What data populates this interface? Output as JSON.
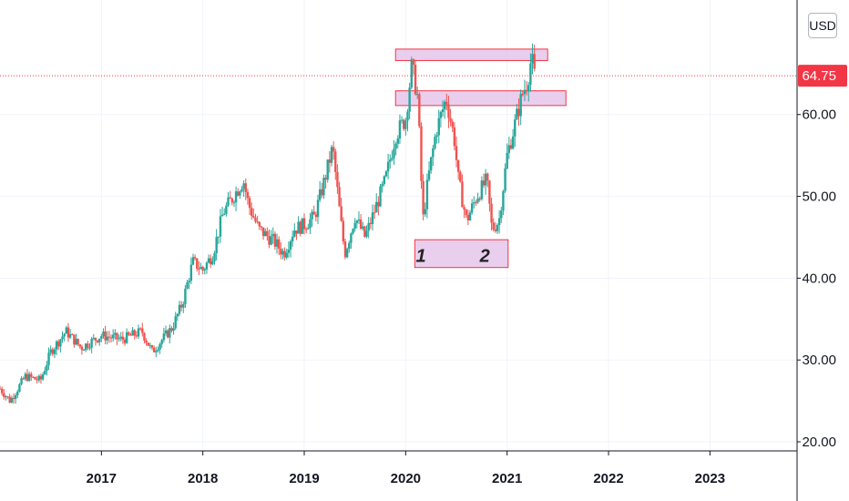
{
  "currency": "USD",
  "last_price": {
    "value": 64.75,
    "label": "64.75",
    "color": "#f23645"
  },
  "colors": {
    "up": "#26a69a",
    "down": "#ef5350",
    "grid": "#f0f3fa",
    "zone_fill": "#e1bee7",
    "zone_stroke": "#f23645",
    "axis_line": "#131722"
  },
  "chart_data": {
    "type": "candlestick",
    "title": "",
    "xlabel": "",
    "ylabel": "",
    "ylim": [
      19,
      74
    ],
    "xlim": [
      2016.0,
      2023.85
    ],
    "y_ticks": [
      20,
      30,
      40,
      50,
      60
    ],
    "y_tick_labels": [
      "20.00",
      "30.00",
      "40.00",
      "50.00",
      "60.00"
    ],
    "x_ticks": [
      2017,
      2018,
      2019,
      2020,
      2021,
      2022,
      2023
    ],
    "x_tick_labels": [
      "2017",
      "2018",
      "2019",
      "2020",
      "2021",
      "2022",
      "2023"
    ],
    "grid": true,
    "anchors": [
      [
        2016.0,
        26.5
      ],
      [
        2016.1,
        25.0
      ],
      [
        2016.25,
        28.0
      ],
      [
        2016.4,
        27.5
      ],
      [
        2016.5,
        31.0
      ],
      [
        2016.65,
        33.5
      ],
      [
        2016.8,
        31.5
      ],
      [
        2017.0,
        33.0
      ],
      [
        2017.2,
        32.5
      ],
      [
        2017.4,
        33.5
      ],
      [
        2017.5,
        31.0
      ],
      [
        2017.6,
        32.5
      ],
      [
        2017.7,
        34.0
      ],
      [
        2017.8,
        37.0
      ],
      [
        2017.9,
        42.0
      ],
      [
        2018.0,
        41.0
      ],
      [
        2018.1,
        43.0
      ],
      [
        2018.2,
        48.0
      ],
      [
        2018.3,
        50.0
      ],
      [
        2018.4,
        52.0
      ],
      [
        2018.45,
        49.0
      ],
      [
        2018.55,
        46.0
      ],
      [
        2018.7,
        44.5
      ],
      [
        2018.8,
        43.0
      ],
      [
        2018.9,
        46.0
      ],
      [
        2019.0,
        46.5
      ],
      [
        2019.1,
        47.5
      ],
      [
        2019.2,
        52.0
      ],
      [
        2019.28,
        56.0
      ],
      [
        2019.35,
        48.0
      ],
      [
        2019.4,
        43.0
      ],
      [
        2019.5,
        47.5
      ],
      [
        2019.6,
        45.0
      ],
      [
        2019.7,
        48.5
      ],
      [
        2019.8,
        52.0
      ],
      [
        2019.9,
        57.5
      ],
      [
        2020.0,
        59.5
      ],
      [
        2020.06,
        66.0
      ],
      [
        2020.12,
        62.0
      ],
      [
        2020.17,
        47.0
      ],
      [
        2020.22,
        52.0
      ],
      [
        2020.3,
        58.0
      ],
      [
        2020.4,
        62.0
      ],
      [
        2020.48,
        57.0
      ],
      [
        2020.52,
        52.0
      ],
      [
        2020.6,
        47.0
      ],
      [
        2020.7,
        50.0
      ],
      [
        2020.8,
        52.0
      ],
      [
        2020.85,
        46.0
      ],
      [
        2020.92,
        47.0
      ],
      [
        2021.0,
        55.0
      ],
      [
        2021.1,
        60.0
      ],
      [
        2021.15,
        62.5
      ],
      [
        2021.2,
        64.0
      ],
      [
        2021.24,
        67.0
      ],
      [
        2021.27,
        64.75
      ]
    ],
    "zones": [
      {
        "x0": 2019.9,
        "x1": 2021.4,
        "y0": 66.6,
        "y1": 68.0
      },
      {
        "x0": 2019.9,
        "x1": 2021.58,
        "y0": 61.1,
        "y1": 62.9
      },
      {
        "x0": 2020.09,
        "x1": 2021.01,
        "y0": 41.3,
        "y1": 44.7
      }
    ],
    "annotations": [
      {
        "text": "1",
        "x": 2020.15,
        "y": 42.0
      },
      {
        "text": "2",
        "x": 2020.78,
        "y": 42.0
      }
    ]
  }
}
